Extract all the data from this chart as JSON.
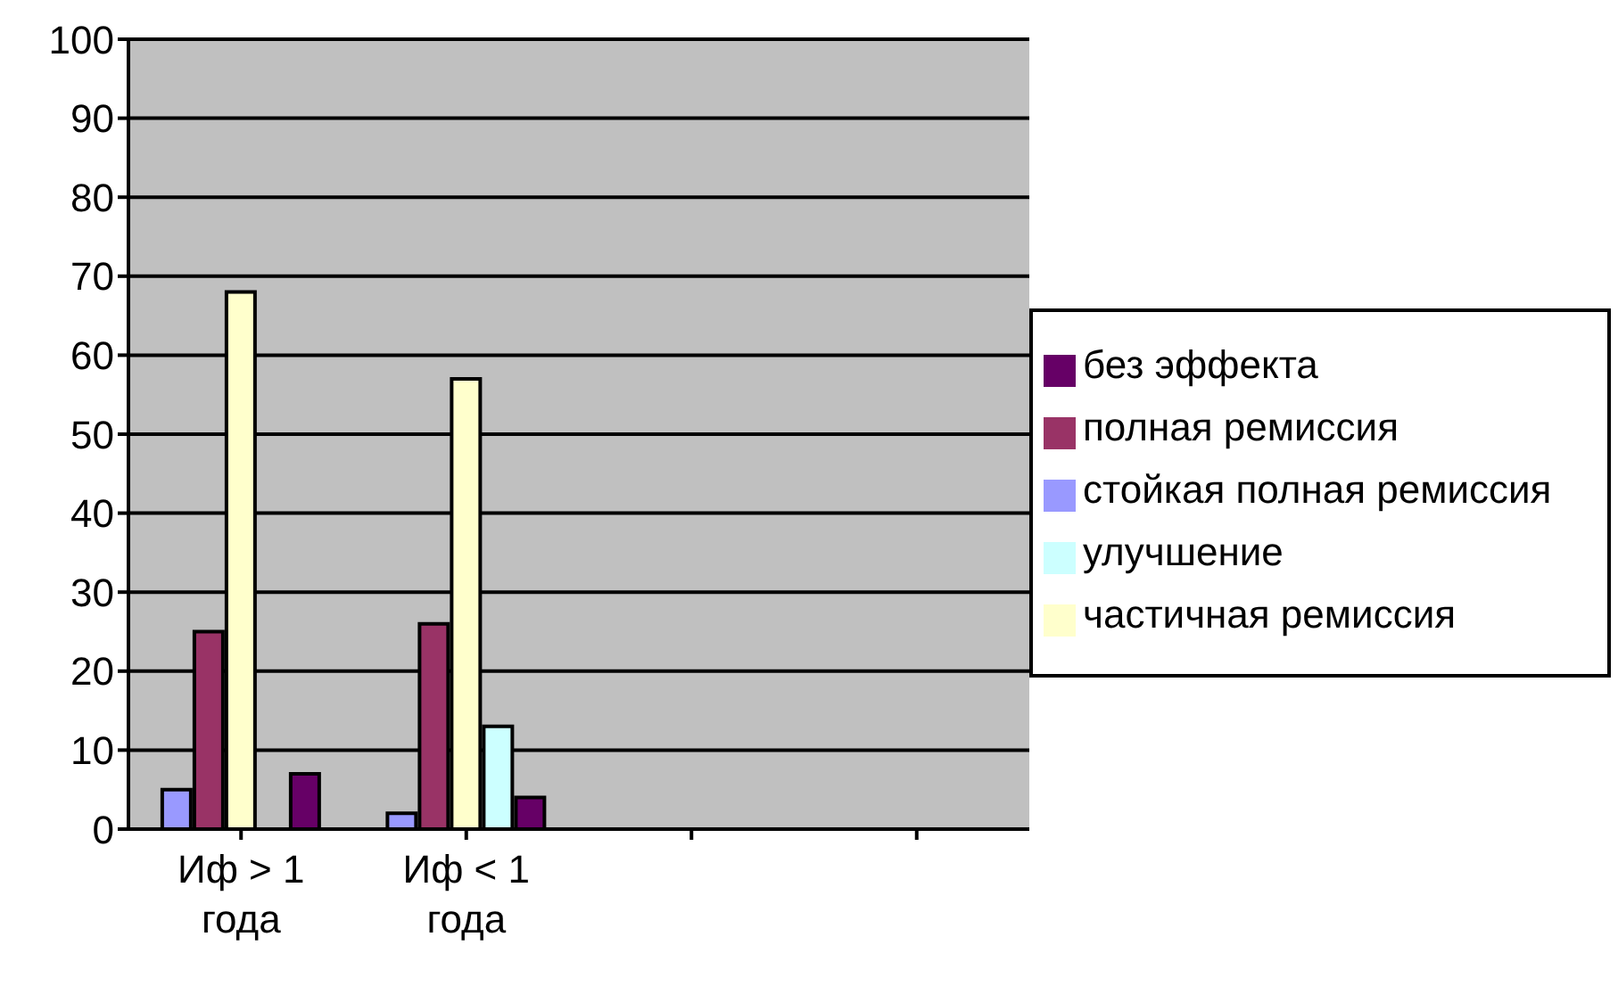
{
  "chart_data": {
    "type": "bar",
    "categories": [
      "Иф > 1 года",
      "Иф < 1 года",
      null,
      null
    ],
    "series": [
      {
        "name": "стойкая полная ремиссия",
        "color": "#9999ff",
        "values": [
          5,
          2,
          null,
          null
        ]
      },
      {
        "name": "полная ремиссия",
        "color": "#993366",
        "values": [
          25,
          26,
          null,
          null
        ]
      },
      {
        "name": "частичная ремиссия",
        "color": "#ffffcc",
        "values": [
          68,
          57,
          null,
          null
        ]
      },
      {
        "name": "улучшение",
        "color": "#ccffff",
        "values": [
          0,
          13,
          null,
          null
        ]
      },
      {
        "name": "без эффекта",
        "color": "#660066",
        "values": [
          7,
          4,
          null,
          null
        ]
      }
    ],
    "ylim": [
      0,
      100
    ],
    "yticks": [
      0,
      10,
      20,
      30,
      40,
      50,
      60,
      70,
      80,
      90,
      100
    ],
    "grid": "y",
    "legend": "right"
  }
}
